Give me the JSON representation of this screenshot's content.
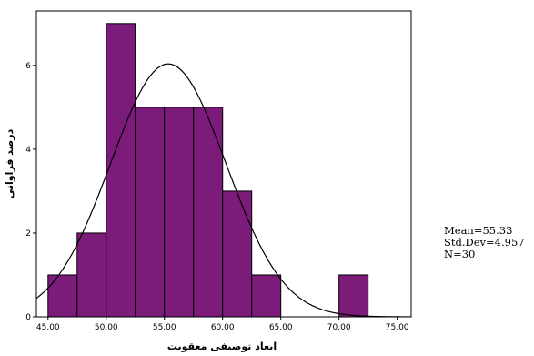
{
  "chart_data": {
    "type": "histogram",
    "xlabel": "ابعاد توصیفی معقویت",
    "ylabel": "درصد فراوانی",
    "bins": [
      {
        "start": 45.0,
        "end": 47.5,
        "value": 1
      },
      {
        "start": 47.5,
        "end": 50.0,
        "value": 2
      },
      {
        "start": 50.0,
        "end": 52.5,
        "value": 7
      },
      {
        "start": 52.5,
        "end": 55.0,
        "value": 5
      },
      {
        "start": 55.0,
        "end": 57.5,
        "value": 5
      },
      {
        "start": 57.5,
        "end": 60.0,
        "value": 5
      },
      {
        "start": 60.0,
        "end": 62.5,
        "value": 3
      },
      {
        "start": 62.5,
        "end": 65.0,
        "value": 1
      },
      {
        "start": 65.0,
        "end": 67.5,
        "value": 0
      },
      {
        "start": 67.5,
        "end": 70.0,
        "value": 0
      },
      {
        "start": 70.0,
        "end": 72.5,
        "value": 1
      }
    ],
    "x_ticks": [
      "45.00",
      "50.00",
      "55.00",
      "60.00",
      "65.00",
      "70.00",
      "75.00"
    ],
    "y_ticks": [
      "0",
      "2",
      "4",
      "6"
    ],
    "xlim": [
      44.0,
      76.2
    ],
    "ylim": [
      0,
      7.3
    ],
    "grid": false,
    "normal_curve": {
      "mean": 55.33,
      "std": 4.957,
      "n": 30
    },
    "stats": {
      "mean": "Mean=55.33",
      "std": "Std.Dev=4.957",
      "n": "N=30"
    },
    "bar_color": "#7b1c7a",
    "bar_edge_color": "#000000"
  }
}
